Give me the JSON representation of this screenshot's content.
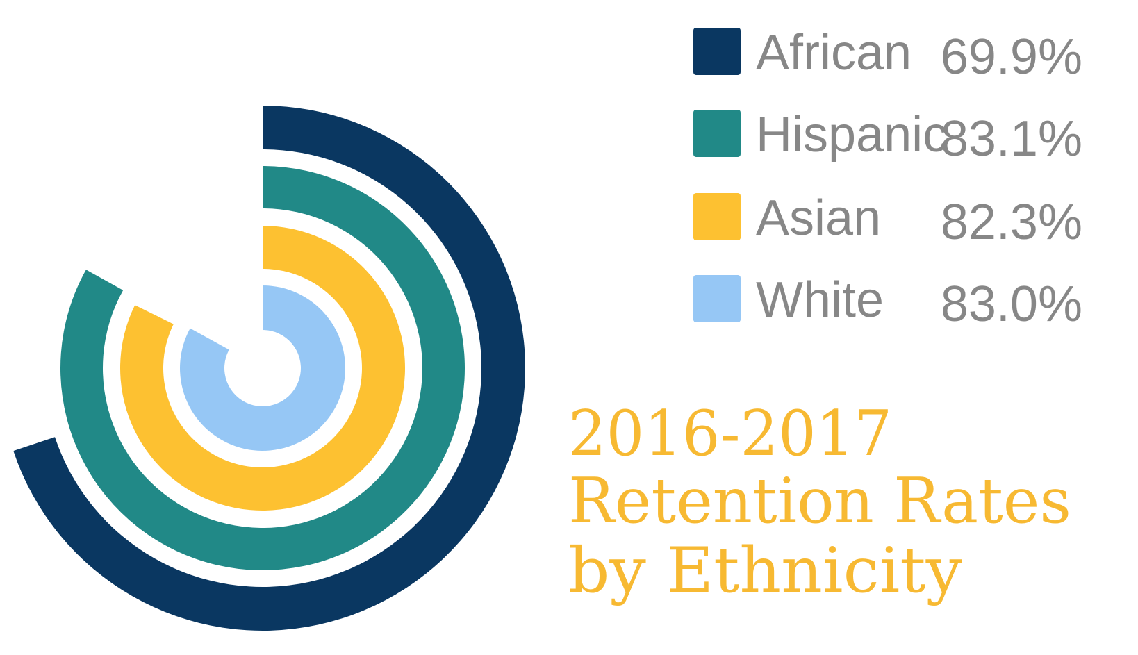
{
  "chart_data": {
    "type": "radial_bar",
    "title": [
      "2016-2017",
      "Retention Rates",
      "by Ethnicity"
    ],
    "categories": [
      "African",
      "Hispanic",
      "Asian",
      "White"
    ],
    "values": [
      69.9,
      83.1,
      82.3,
      83.0
    ],
    "value_labels": [
      "69.9%",
      "83.1%",
      "82.3%",
      "83.0%"
    ],
    "colors": [
      "#0a3761",
      "#218987",
      "#fdc131",
      "#96c7f5"
    ],
    "ylim": [
      0,
      100
    ]
  }
}
